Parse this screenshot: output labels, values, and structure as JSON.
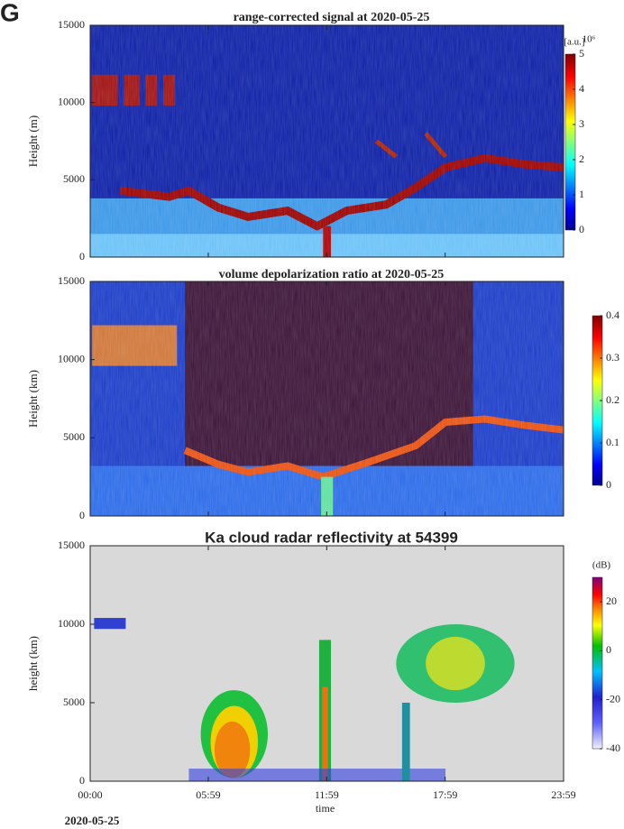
{
  "panel_label": "G",
  "chart_data": [
    {
      "type": "heatmap",
      "title": "range-corrected signal at 2020-05-25",
      "ylabel": "Height (m)",
      "ylim": [
        0,
        15000
      ],
      "yticks": [
        0,
        5000,
        10000,
        15000
      ],
      "colormap": "jet",
      "clim": [
        0,
        5
      ],
      "cticks": [
        0,
        1,
        2,
        3,
        4,
        5
      ],
      "cbar_label": "[a.u.]",
      "cbar_exponent": "10⁶",
      "background": "#0c1fa6"
    },
    {
      "type": "heatmap",
      "title": "volume depolarization ratio at 2020-05-25",
      "ylabel": "Height (km)",
      "ylim": [
        0,
        15000
      ],
      "yticks": [
        0,
        5000,
        10000,
        15000
      ],
      "colormap": "jet",
      "clim": [
        0,
        0.4
      ],
      "cticks": [
        0,
        0.1,
        0.2,
        0.3,
        0.4
      ],
      "background": "#1a3cc8"
    },
    {
      "type": "heatmap",
      "title": "Ka cloud radar reflectivity at 54399",
      "ylabel": "height (km)",
      "xlabel": "time",
      "date_label": "2020-05-25",
      "ylim": [
        0,
        15000
      ],
      "yticks": [
        0,
        5000,
        10000,
        15000
      ],
      "xlim": [
        0,
        23.9833
      ],
      "xticks": [
        {
          "value": 0,
          "label": "00:00"
        },
        {
          "value": 5.9833,
          "label": "05:59"
        },
        {
          "value": 11.9833,
          "label": "11:59"
        },
        {
          "value": 17.9833,
          "label": "17:59"
        },
        {
          "value": 23.9833,
          "label": "23:59"
        }
      ],
      "colormap": "radar",
      "clim": [
        -40,
        30
      ],
      "cticks": [
        -40,
        -20,
        0,
        20
      ],
      "cbar_label": "(dB)",
      "background": "#d9d9d9"
    }
  ]
}
